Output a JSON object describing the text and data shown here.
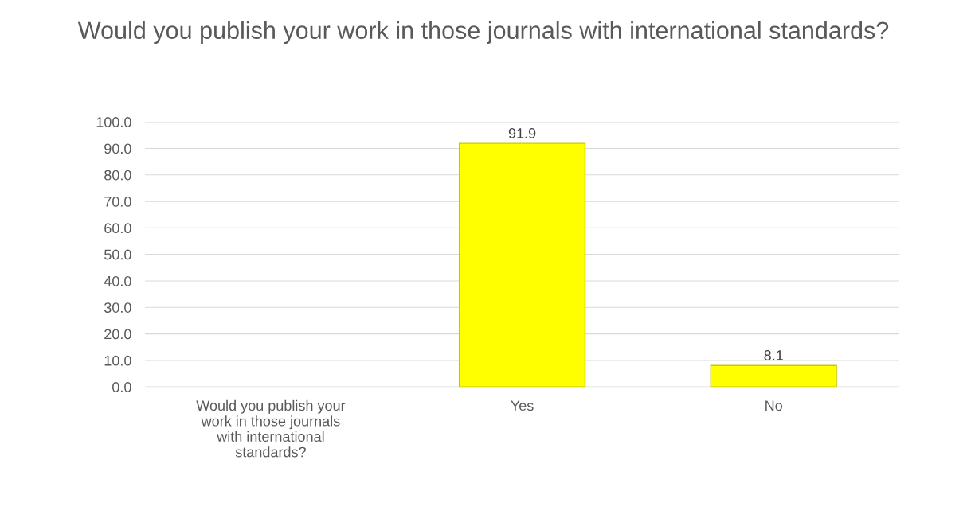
{
  "chart_data": {
    "type": "bar",
    "title": "Would you publish your work in those journals with international standards?",
    "categories": [
      "Would you publish your work in those journals with international standards?",
      "Yes",
      "No"
    ],
    "values": [
      null,
      91.9,
      8.1
    ],
    "color": "#ffff00",
    "data_labels": true,
    "grid": "y",
    "ylim": [
      0,
      100
    ],
    "yticks": [
      {
        "value": 0,
        "label": "0.0"
      },
      {
        "value": 10,
        "label": "10.0"
      },
      {
        "value": 20,
        "label": "20.0"
      },
      {
        "value": 30,
        "label": "30.0"
      },
      {
        "value": 40,
        "label": "40.0"
      },
      {
        "value": 50,
        "label": "50.0"
      },
      {
        "value": 60,
        "label": "60.0"
      },
      {
        "value": 70,
        "label": "70.0"
      },
      {
        "value": 80,
        "label": "80.0"
      },
      {
        "value": 90,
        "label": "90.0"
      },
      {
        "value": 100,
        "label": "100.0"
      }
    ]
  }
}
